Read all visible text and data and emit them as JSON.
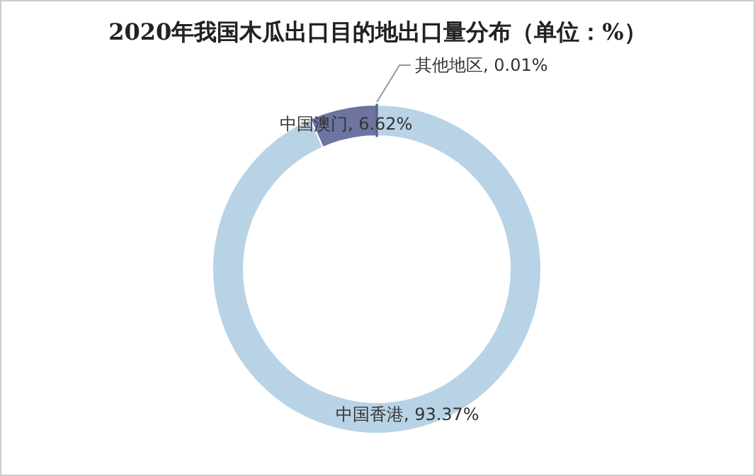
{
  "chart_data": {
    "type": "donut",
    "title": "2020年我国木瓜出口目的地出口量分布（单位：%）",
    "categories": [
      "其他地区",
      "中国香港",
      "中国澳门"
    ],
    "values": [
      0.01,
      93.37,
      6.62
    ],
    "colors": [
      "#5b6190",
      "#b8d3e6",
      "#6e74a0"
    ],
    "value_labels": [
      "0.01%",
      "93.37%",
      "6.62%"
    ]
  }
}
